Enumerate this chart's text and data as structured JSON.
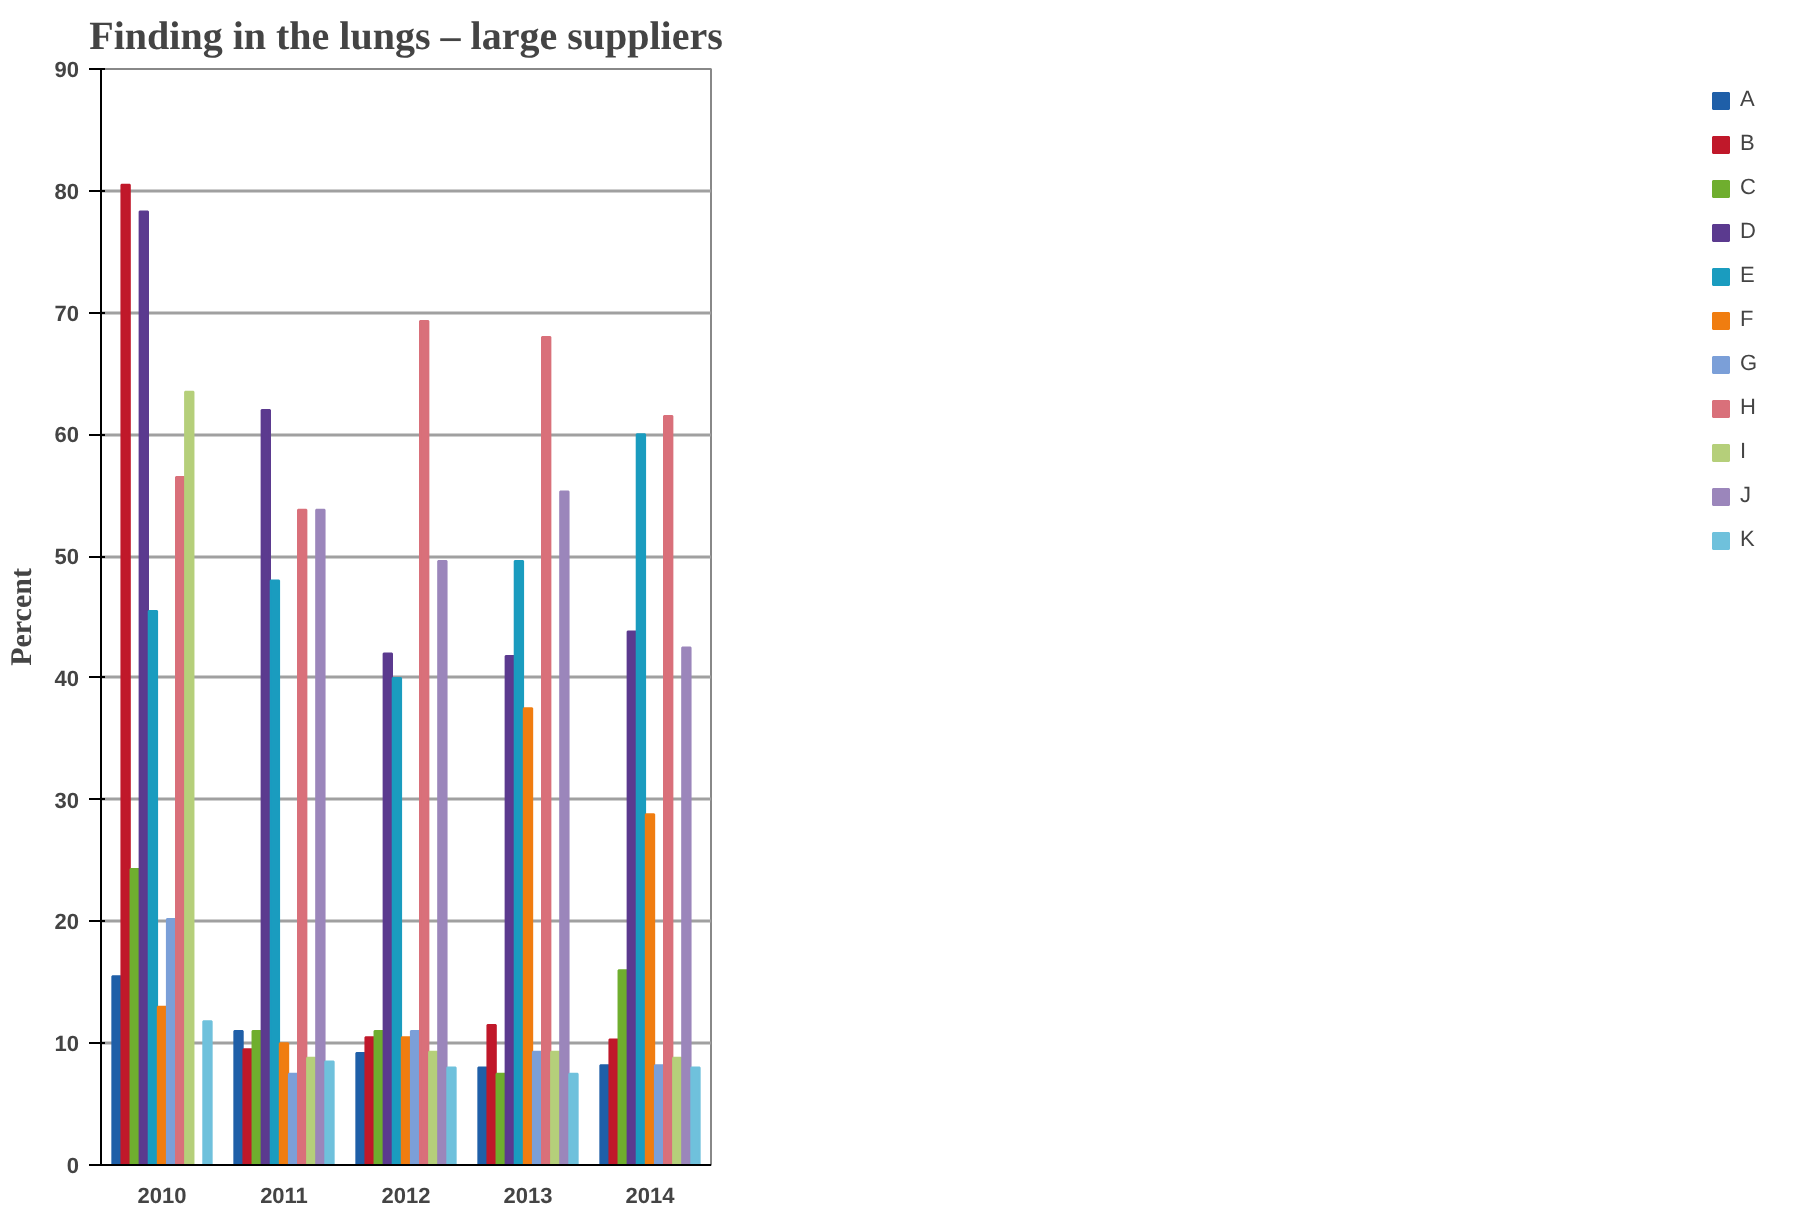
{
  "chart_data": {
    "type": "bar",
    "title": "Finding in the lungs – large suppliers",
    "ylabel": "Percent",
    "categories": [
      "2010",
      "2011",
      "2012",
      "2013",
      "2014"
    ],
    "series": [
      {
        "name": "A",
        "color": "#1f5fa8",
        "values": [
          15.5,
          11,
          9.2,
          8,
          8.2
        ]
      },
      {
        "name": "B",
        "color": "#c0182a",
        "values": [
          80.5,
          9.5,
          10.5,
          11.5,
          10.3
        ]
      },
      {
        "name": "C",
        "color": "#6fae2e",
        "values": [
          24.3,
          11,
          11,
          7.5,
          16
        ]
      },
      {
        "name": "D",
        "color": "#5b3a8f",
        "values": [
          78.3,
          62,
          42,
          41.8,
          43.8
        ]
      },
      {
        "name": "E",
        "color": "#1a9cbf",
        "values": [
          45.5,
          48,
          40,
          49.6,
          60
        ]
      },
      {
        "name": "F",
        "color": "#f07d10",
        "values": [
          13,
          10,
          10.5,
          37.5,
          28.8
        ]
      },
      {
        "name": "G",
        "color": "#7b9fd8",
        "values": [
          20.2,
          7.5,
          11,
          9.3,
          8.2
        ]
      },
      {
        "name": "H",
        "color": "#d9707a",
        "values": [
          56.5,
          53.8,
          69.3,
          68,
          61.5
        ]
      },
      {
        "name": "I",
        "color": "#b5cf7a",
        "values": [
          63.5,
          8.8,
          9.3,
          9.3,
          8.8
        ]
      },
      {
        "name": "J",
        "color": "#9b86bb",
        "values": [
          null,
          53.8,
          49.6,
          55.3,
          42.5
        ]
      },
      {
        "name": "K",
        "color": "#6fc1dc",
        "values": [
          11.8,
          8.5,
          8,
          7.5,
          8
        ]
      }
    ],
    "ylim": [
      0,
      90
    ],
    "yticks": [
      0,
      10,
      20,
      30,
      40,
      50,
      60,
      70,
      80,
      90
    ],
    "grid": "y",
    "legend": "right"
  }
}
